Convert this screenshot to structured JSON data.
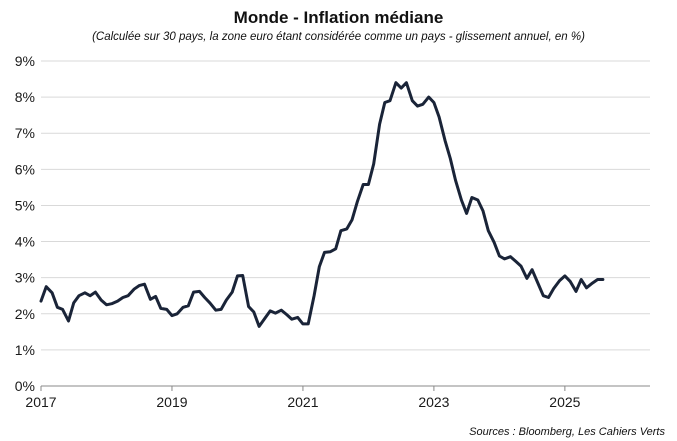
{
  "title": "Monde - Inflation médiane",
  "subtitle": "(Calculée sur 30 pays, la zone euro étant considérée comme un pays - glissement annuel, en %)",
  "source": "Sources : Bloomberg, Les Cahiers Verts",
  "colors": {
    "line": "#1a2438",
    "grid": "#d9d9d9",
    "axis": "#888888"
  },
  "chart_data": {
    "type": "line",
    "title": "Monde - Inflation médiane",
    "subtitle": "(Calculée sur 30 pays, la zone euro étant considérée comme un pays - glissement annuel, en %)",
    "xlabel": "",
    "ylabel": "",
    "xlim": [
      2017,
      2026.3
    ],
    "ylim": [
      0,
      9
    ],
    "grid": true,
    "legend": "none",
    "x_ticks": [
      2017,
      2019,
      2021,
      2023,
      2025
    ],
    "x_tick_labels": [
      "2017",
      "2019",
      "2021",
      "2023",
      "2025"
    ],
    "y_ticks": [
      0,
      1,
      2,
      3,
      4,
      5,
      6,
      7,
      8,
      9
    ],
    "y_tick_labels": [
      "0%",
      "1%",
      "2%",
      "3%",
      "4%",
      "5%",
      "6%",
      "7%",
      "8%",
      "9%"
    ],
    "series": [
      {
        "x": [
          2017.0,
          2017.08,
          2017.17,
          2017.25,
          2017.33,
          2017.42,
          2017.5,
          2017.58,
          2017.67,
          2017.75,
          2017.83,
          2017.92,
          2018.0,
          2018.08,
          2018.17,
          2018.25,
          2018.33,
          2018.42,
          2018.5,
          2018.58,
          2018.67,
          2018.75,
          2018.83,
          2018.92,
          2019.0,
          2019.08,
          2019.17,
          2019.25,
          2019.33,
          2019.42,
          2019.5,
          2019.58,
          2019.67,
          2019.75,
          2019.83,
          2019.92,
          2020.0,
          2020.08,
          2020.17,
          2020.25,
          2020.33,
          2020.42,
          2020.5,
          2020.58,
          2020.67,
          2020.75,
          2020.83,
          2020.92,
          2021.0,
          2021.08,
          2021.17,
          2021.25,
          2021.33,
          2021.42,
          2021.5,
          2021.58,
          2021.67,
          2021.75,
          2021.83,
          2021.92,
          2022.0,
          2022.08,
          2022.17,
          2022.25,
          2022.33,
          2022.42,
          2022.5,
          2022.58,
          2022.67,
          2022.75,
          2022.83,
          2022.92,
          2023.0,
          2023.08,
          2023.17,
          2023.25,
          2023.33,
          2023.42,
          2023.5,
          2023.58,
          2023.67,
          2023.75,
          2023.83,
          2023.92,
          2024.0,
          2024.08,
          2024.17,
          2024.25,
          2024.33,
          2024.42,
          2024.5,
          2024.58,
          2024.67,
          2024.75,
          2024.83,
          2024.92,
          2025.0,
          2025.08,
          2025.17,
          2025.25,
          2025.33,
          2025.42,
          2025.5,
          2025.58
        ],
        "y": [
          2.35,
          2.75,
          2.58,
          2.18,
          2.12,
          1.8,
          2.3,
          2.5,
          2.58,
          2.5,
          2.6,
          2.38,
          2.25,
          2.28,
          2.35,
          2.45,
          2.5,
          2.68,
          2.78,
          2.82,
          2.4,
          2.48,
          2.15,
          2.12,
          1.95,
          2.0,
          2.18,
          2.22,
          2.6,
          2.62,
          2.45,
          2.3,
          2.1,
          2.12,
          2.38,
          2.6,
          3.05,
          3.06,
          2.2,
          2.05,
          1.65,
          1.88,
          2.08,
          2.02,
          2.1,
          1.98,
          1.85,
          1.9,
          1.72,
          1.72,
          2.5,
          3.3,
          3.7,
          3.72,
          3.8,
          4.3,
          4.35,
          4.6,
          5.1,
          5.58,
          5.58,
          6.15,
          7.25,
          7.85,
          7.9,
          8.4,
          8.25,
          8.4,
          7.9,
          7.75,
          7.8,
          8.0,
          7.85,
          7.45,
          6.8,
          6.3,
          5.7,
          5.15,
          4.78,
          5.22,
          5.15,
          4.85,
          4.3,
          3.98,
          3.6,
          3.52,
          3.58,
          3.45,
          3.32,
          2.98,
          3.22,
          2.88,
          2.5,
          2.45,
          2.7,
          2.92,
          3.05,
          2.9,
          2.62,
          2.95,
          2.72,
          2.85,
          2.95,
          2.95
        ]
      }
    ]
  }
}
